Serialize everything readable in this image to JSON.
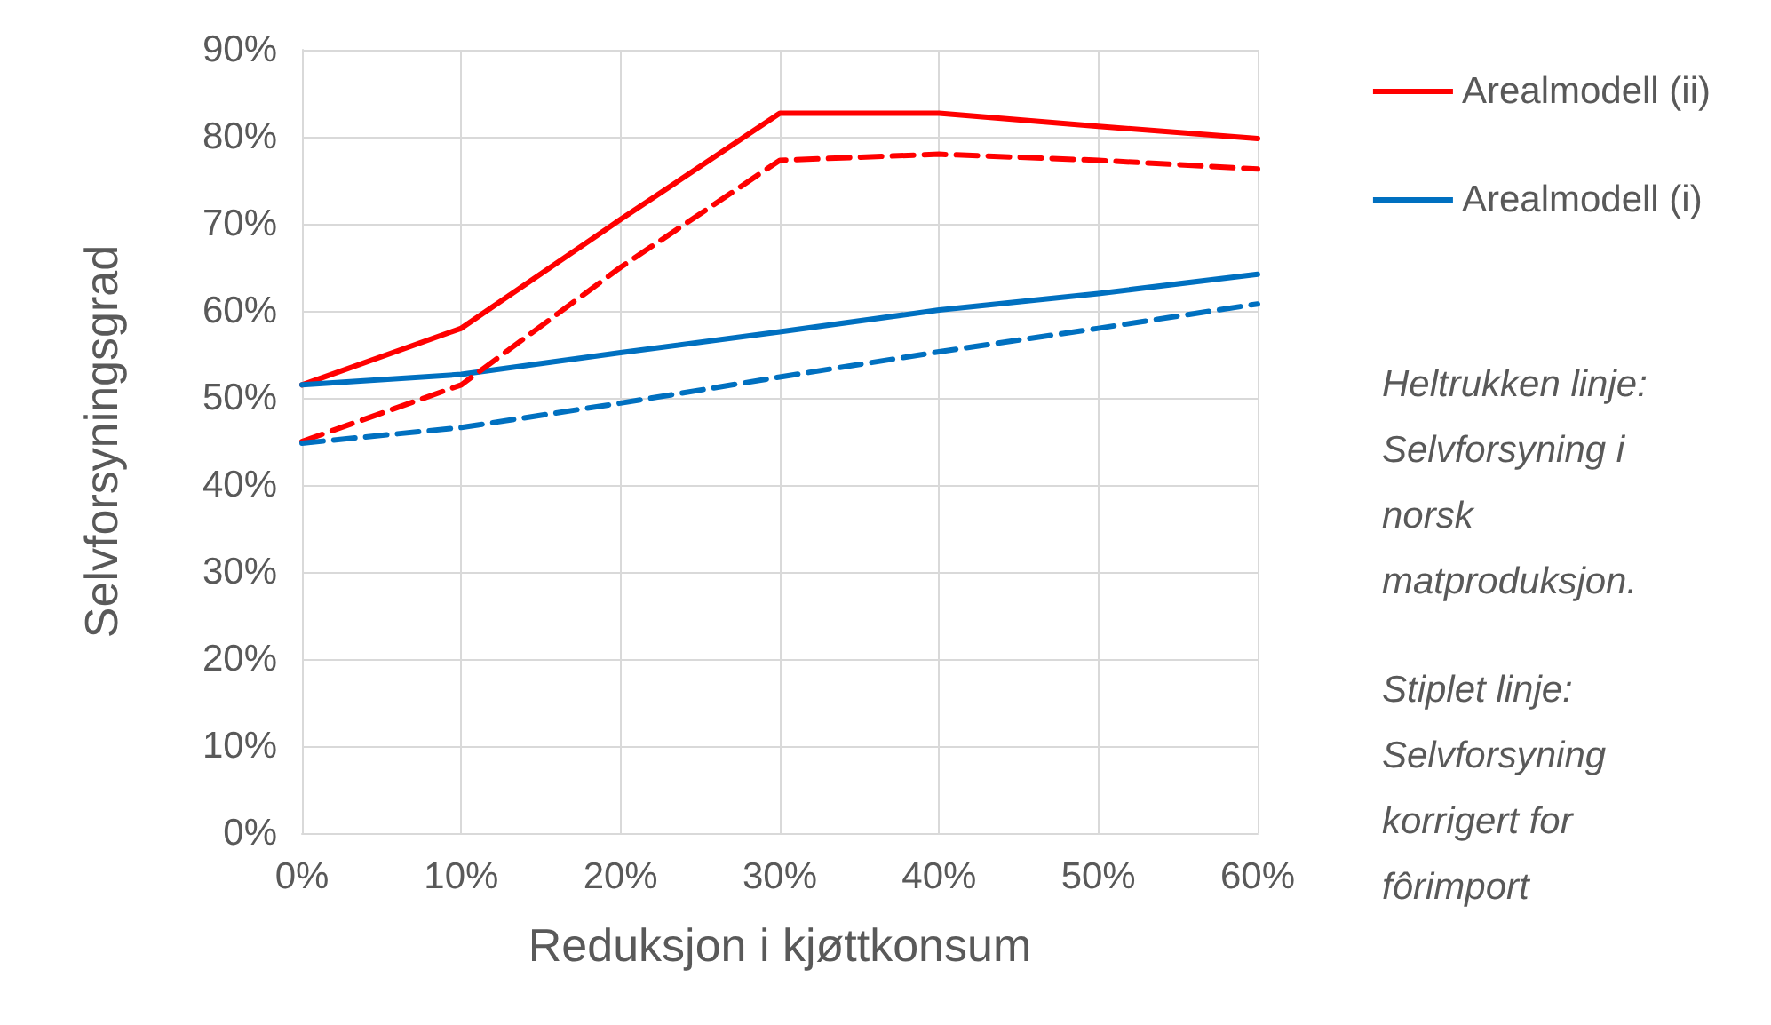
{
  "chart_data": {
    "type": "line",
    "xlabel": "Reduksjon i kjøttkonsum",
    "ylabel": "Selvforsyningsgrad",
    "x": [
      0,
      10,
      20,
      30,
      40,
      50,
      60
    ],
    "series": [
      {
        "name": "Arealmodell (ii)",
        "color": "#ff0000",
        "line_style": "solid",
        "values": [
          51.5,
          58,
          70.5,
          82.7,
          82.7,
          81.2,
          79.8
        ]
      },
      {
        "name": "Arealmodell (i)",
        "color": "#0070c0",
        "line_style": "solid",
        "values": [
          51.5,
          52.7,
          55.2,
          57.6,
          60.1,
          62,
          64.2
        ]
      },
      {
        "color": "#ff0000",
        "line_style": "dashed",
        "values": [
          45,
          51.5,
          65,
          77.3,
          78,
          77.3,
          76.3
        ]
      },
      {
        "color": "#0070c0",
        "line_style": "dashed",
        "values": [
          44.8,
          46.6,
          49.4,
          52.4,
          55.3,
          58,
          60.8
        ]
      }
    ],
    "xlim": [
      0,
      60
    ],
    "xticks": [
      {
        "value": 0,
        "label": "0%"
      },
      {
        "value": 10,
        "label": "10%"
      },
      {
        "value": 20,
        "label": "20%"
      },
      {
        "value": 30,
        "label": "30%"
      },
      {
        "value": 40,
        "label": "40%"
      },
      {
        "value": 50,
        "label": "50%"
      },
      {
        "value": 60,
        "label": "60%"
      }
    ],
    "ylim": [
      0,
      90
    ],
    "yticks": [
      {
        "value": 0,
        "label": "0%"
      },
      {
        "value": 10,
        "label": "10%"
      },
      {
        "value": 20,
        "label": "20%"
      },
      {
        "value": 30,
        "label": "30%"
      },
      {
        "value": 40,
        "label": "40%"
      },
      {
        "value": 50,
        "label": "50%"
      },
      {
        "value": 60,
        "label": "60%"
      },
      {
        "value": 70,
        "label": "70%"
      },
      {
        "value": 80,
        "label": "80%"
      },
      {
        "value": 90,
        "label": "90%"
      }
    ],
    "grid": true,
    "legend": "right",
    "marker": "none",
    "annotations": [
      "Heltrukken linje: Selvforsyning i norsk matproduksjon.",
      "Stiplet linje: Selvforsyning korrigert for fôrimport"
    ]
  }
}
